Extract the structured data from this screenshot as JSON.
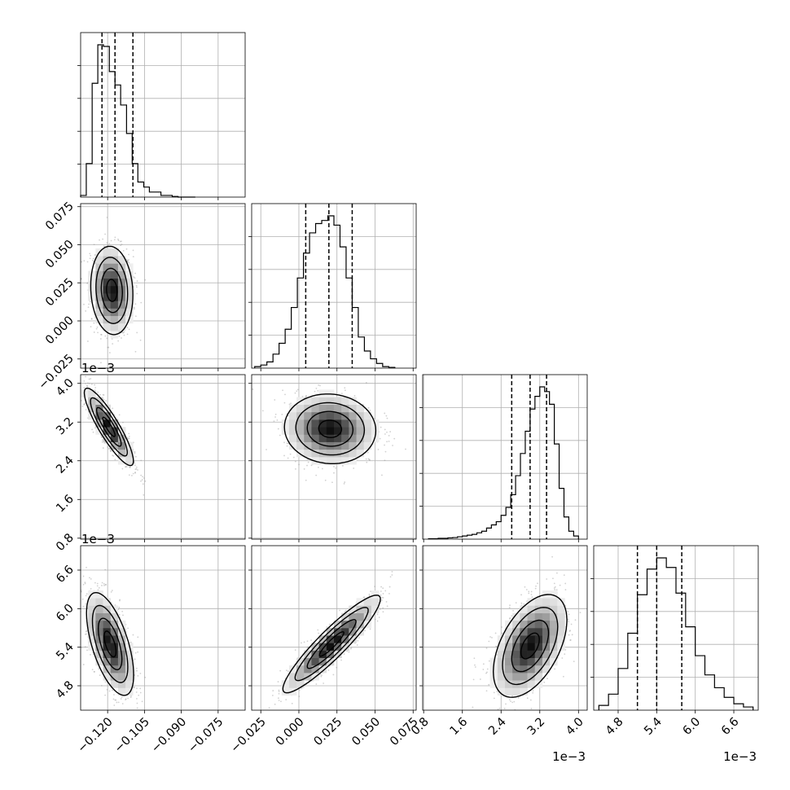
{
  "figure": {
    "type": "corner_plot",
    "grid": true
  },
  "chart_data": {
    "type": "corner",
    "parameters": [
      {
        "index": 0,
        "label": "",
        "scale_label": "",
        "range": [
          -0.131,
          -0.064
        ],
        "ticks": [
          {
            "value": -0.12,
            "label": "−0.120"
          },
          {
            "value": -0.105,
            "label": "−0.105"
          },
          {
            "value": -0.09,
            "label": "−0.090"
          },
          {
            "value": -0.075,
            "label": "−0.075"
          }
        ],
        "quantiles": [
          -0.1223,
          -0.117,
          -0.1097
        ],
        "histogram": {
          "edges": [
            -0.131,
            -0.1287,
            -0.1263,
            -0.124,
            -0.1217,
            -0.1193,
            -0.117,
            -0.1147,
            -0.1123,
            -0.11,
            -0.1077,
            -0.1053,
            -0.103,
            -0.1007,
            -0.0983,
            -0.096,
            -0.0937,
            -0.0913,
            -0.089,
            -0.0867,
            -0.0843
          ],
          "counts": [
            1,
            20,
            68,
            91,
            90,
            75,
            67,
            55,
            38,
            20,
            9,
            6,
            3,
            3,
            1,
            1,
            0.4,
            0,
            0,
            0
          ]
        }
      },
      {
        "index": 1,
        "label": "",
        "scale_label": "",
        "range": [
          -0.031,
          0.077
        ],
        "ticks": [
          {
            "value": -0.025,
            "label": "−0.025"
          },
          {
            "value": 0.0,
            "label": "0.000"
          },
          {
            "value": 0.025,
            "label": "0.025"
          },
          {
            "value": 0.05,
            "label": "0.050"
          },
          {
            "value": 0.075,
            "label": "0.075"
          }
        ],
        "quantiles": [
          0.0045,
          0.0197,
          0.035
        ],
        "histogram": {
          "edges": [
            -0.029,
            -0.025,
            -0.021,
            -0.017,
            -0.013,
            -0.009,
            -0.005,
            -0.001,
            0.003,
            0.007,
            0.011,
            0.015,
            0.019,
            0.023,
            0.027,
            0.031,
            0.035,
            0.039,
            0.043,
            0.047,
            0.051,
            0.055,
            0.059,
            0.063
          ],
          "counts": [
            1,
            2,
            4,
            9,
            16,
            25,
            39,
            58,
            74,
            87,
            93,
            95,
            98,
            92,
            78,
            58,
            39,
            20,
            11,
            6,
            3,
            1,
            0.5
          ]
        }
      },
      {
        "index": 2,
        "label": "",
        "scale_label": "1e−3",
        "range": [
          0.00078,
          0.00418
        ],
        "ticks": [
          {
            "value": 0.0008,
            "label": "0.8"
          },
          {
            "value": 0.0016,
            "label": "1.6"
          },
          {
            "value": 0.0024,
            "label": "2.4"
          },
          {
            "value": 0.0032,
            "label": "3.2"
          },
          {
            "value": 0.004,
            "label": "4.0"
          }
        ],
        "quantiles": [
          0.00262,
          0.003,
          0.00334
        ],
        "histogram": {
          "edges": [
            0.0009,
            0.001,
            0.0011,
            0.0012,
            0.0013,
            0.0014,
            0.0015,
            0.0016,
            0.0017,
            0.0018,
            0.0019,
            0.002,
            0.0021,
            0.0022,
            0.0023,
            0.0024,
            0.0025,
            0.0026,
            0.0027,
            0.0028,
            0.0029,
            0.003,
            0.0031,
            0.0032,
            0.0033,
            0.0034,
            0.0035,
            0.0036,
            0.0037,
            0.0038,
            0.0039,
            0.004
          ],
          "counts": [
            0.3,
            0.3,
            0.5,
            0.5,
            0.8,
            1,
            1.5,
            2,
            2.5,
            3,
            4,
            5,
            7,
            9,
            11,
            15,
            20,
            28,
            40,
            54,
            68,
            82,
            90,
            96,
            93,
            85,
            60,
            32,
            14,
            5,
            2
          ]
        }
      },
      {
        "index": 3,
        "label": "",
        "scale_label": "1e−3",
        "range": [
          0.00442,
          0.00698
        ],
        "ticks": [
          {
            "value": 0.0048,
            "label": "4.8"
          },
          {
            "value": 0.0054,
            "label": "5.4"
          },
          {
            "value": 0.006,
            "label": "6.0"
          },
          {
            "value": 0.0066,
            "label": "6.6"
          }
        ],
        "quantiles": [
          0.0051,
          0.0054,
          0.00579
        ],
        "histogram": {
          "edges": [
            0.0045,
            0.00465,
            0.0048,
            0.00495,
            0.0051,
            0.00525,
            0.0054,
            0.00555,
            0.0057,
            0.00585,
            0.006,
            0.00615,
            0.0063,
            0.00645,
            0.0066,
            0.00675,
            0.0069
          ],
          "counts": [
            3,
            10,
            26,
            48,
            72,
            88,
            95,
            89,
            73,
            52,
            34,
            22,
            14,
            8,
            4,
            2
          ]
        }
      }
    ],
    "pairs": [
      {
        "row": 1,
        "col": 0,
        "center": [
          -0.1183,
          0.02
        ],
        "sigma": [
          0.0043,
          0.0145
        ],
        "rho": -0.1
      },
      {
        "row": 2,
        "col": 0,
        "center": [
          -0.1195,
          0.0031
        ],
        "sigma": [
          0.005,
          0.0004
        ],
        "rho": -0.88
      },
      {
        "row": 2,
        "col": 1,
        "center": [
          0.0205,
          0.00306
        ],
        "sigma": [
          0.015,
          0.00036
        ],
        "rho": -0.05
      },
      {
        "row": 3,
        "col": 0,
        "center": [
          -0.119,
          0.00545
        ],
        "sigma": [
          0.0048,
          0.0004
        ],
        "rho": -0.6
      },
      {
        "row": 3,
        "col": 1,
        "center": [
          0.0215,
          0.00545
        ],
        "sigma": [
          0.016,
          0.00038
        ],
        "rho": 0.92
      },
      {
        "row": 3,
        "col": 2,
        "center": [
          0.003,
          0.00542
        ],
        "sigma": [
          0.00038,
          0.0004
        ],
        "rho": 0.5
      }
    ],
    "colors": {
      "line": "#000000",
      "grid": "#b0b0b0",
      "points": "#9a9a9a"
    }
  }
}
